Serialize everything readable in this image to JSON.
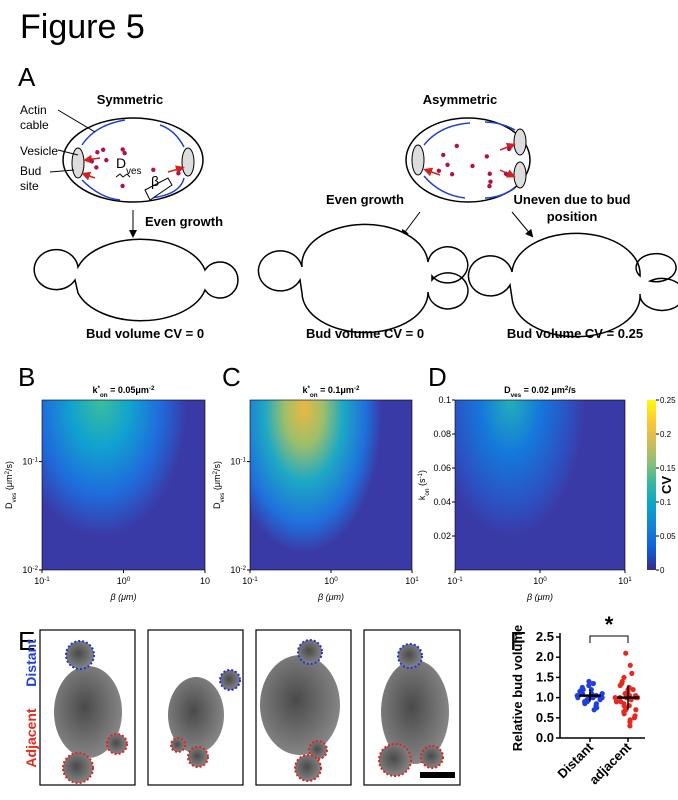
{
  "figure_title": "Figure 5",
  "panel_a": {
    "label": "A",
    "symmetric": "Symmetric",
    "asymmetric": "Asymmetric",
    "actin_cable": [
      "Actin",
      "cable"
    ],
    "vesicle": "Vesicle",
    "bud_site": [
      "Bud",
      "site"
    ],
    "dves": [
      {
        "t": "D"
      },
      {
        "t": "ves",
        "s": "sub"
      }
    ],
    "beta": "β",
    "even_growth_left": "Even growth",
    "even_growth_right": "Even growth",
    "uneven": [
      "Uneven due to bud",
      "position"
    ],
    "cv": [
      "Bud volume CV = 0",
      "Bud volume CV = 0",
      "Bud volume CV = 0.25"
    ]
  },
  "heatmaps": [
    {
      "label": "B",
      "title": [
        {
          "t": "k"
        },
        {
          "t": "*",
          "s": "sup"
        },
        {
          "t": "on",
          "s": "sub"
        },
        {
          "t": " = 0.05"
        },
        {
          "t": "μm"
        },
        {
          "t": "-2",
          "s": "sup"
        }
      ],
      "xlabel": "β (μm)",
      "ylabel": [
        {
          "t": "D"
        },
        {
          "t": "ves",
          "s": "sub"
        },
        {
          "t": " (μm"
        },
        {
          "t": "2",
          "s": "sup"
        },
        {
          "t": "/s)"
        }
      ],
      "xlim": [
        0.1,
        10
      ],
      "xticks": [
        {
          "value": 0.1,
          "label": "10",
          "sup": "-1"
        },
        {
          "value": 1,
          "label": "10",
          "sup": "0"
        },
        10
      ],
      "ylim": [
        0.01,
        0.37
      ],
      "log_y": true,
      "yticks": [
        {
          "value": 0.1,
          "label": "10",
          "sup": "-1"
        },
        {
          "value": 0.01,
          "label": "10",
          "sup": "-2"
        }
      ]
    },
    {
      "label": "C",
      "title": [
        {
          "t": "k"
        },
        {
          "t": "*",
          "s": "sup"
        },
        {
          "t": "on",
          "s": "sub"
        },
        {
          "t": " = 0.1"
        },
        {
          "t": "μm"
        },
        {
          "t": "-2",
          "s": "sup"
        }
      ],
      "xlabel": "β (μm)",
      "ylabel": [
        {
          "t": "D"
        },
        {
          "t": "ves",
          "s": "sub"
        },
        {
          "t": " (μm"
        },
        {
          "t": "2",
          "s": "sup"
        },
        {
          "t": "/s)"
        }
      ],
      "xlim": [
        0.1,
        10
      ],
      "xticks": [
        {
          "value": 0.1,
          "label": "10",
          "sup": "-1"
        },
        {
          "value": 1,
          "label": "10",
          "sup": "0"
        },
        {
          "value": 10,
          "label": "10",
          "sup": "1"
        }
      ],
      "ylim": [
        0.01,
        0.37
      ],
      "log_y": true,
      "yticks": [
        {
          "value": 0.1,
          "label": "10",
          "sup": "-1"
        },
        {
          "value": 0.01,
          "label": "10",
          "sup": "-2"
        }
      ]
    },
    {
      "label": "D",
      "title": [
        {
          "t": "D"
        },
        {
          "t": "ves",
          "s": "sub"
        },
        {
          "t": " = 0.02 "
        },
        {
          "t": "μm"
        },
        {
          "t": "2",
          "s": "sup"
        },
        {
          "t": "/s"
        }
      ],
      "xlabel": "β (μm)",
      "ylabel": [
        {
          "t": "k"
        },
        {
          "t": "on",
          "s": "sub"
        },
        {
          "t": " (s"
        },
        {
          "t": "-1",
          "s": "sup"
        },
        {
          "t": ")"
        }
      ],
      "xlim": [
        0.1,
        10
      ],
      "xticks": [
        {
          "value": 0.1,
          "label": "10",
          "sup": "-1"
        },
        {
          "value": 1,
          "label": "10",
          "sup": "0"
        },
        {
          "value": 10,
          "label": "10",
          "sup": "1"
        }
      ],
      "ylim": [
        0,
        0.1
      ],
      "log_y": false,
      "yticks": [
        0.02,
        0.04,
        0.06,
        0.08,
        0.1
      ]
    }
  ],
  "colorbar": {
    "label": "CV",
    "lim": [
      0,
      0.25
    ],
    "ticks": [
      0,
      0.05,
      0.1,
      0.15,
      0.2,
      0.25
    ],
    "colors": [
      "#352a87",
      "#0f5cdd",
      "#1481d6",
      "#06a4ca",
      "#2eb7a4",
      "#87bf77",
      "#d1bb59",
      "#fec832",
      "#f9fb0e"
    ]
  },
  "panel_e": {
    "label": "E",
    "distant": "Distant",
    "adjacent": "Adjacent"
  },
  "panel_f": {
    "label": "F",
    "ylabel": "Relative bud volume",
    "significance": "*",
    "categories": [
      "Distant",
      "adjacent"
    ],
    "ylim": [
      0,
      2.6
    ],
    "yticks": [
      {
        "value": 0,
        "label": "0.0"
      },
      0.5,
      {
        "value": 1,
        "label": "1.0"
      },
      1.5,
      {
        "value": 2,
        "label": "2.0"
      },
      2.5
    ],
    "groups": [
      {
        "color": "#1f3fe0",
        "mean": 1.05,
        "sd": 0.15,
        "values": [
          1.0,
          1.1,
          0.9,
          1.2,
          1.05,
          0.95,
          1.15,
          0.85,
          1.3,
          1.0,
          0.8,
          1.1,
          1.25,
          0.9,
          1.0,
          1.35,
          0.75,
          1.05,
          1.2,
          0.95,
          1.1,
          0.7,
          1.0,
          1.15,
          0.9,
          1.4,
          1.05,
          0.85,
          1.0,
          1.2
        ]
      },
      {
        "color": "#e8281e",
        "mean": 1.0,
        "sd": 0.3,
        "values": [
          1.0,
          0.9,
          1.1,
          0.8,
          1.2,
          0.7,
          1.3,
          0.6,
          1.0,
          0.95,
          1.05,
          0.5,
          1.4,
          0.85,
          1.15,
          0.4,
          1.6,
          0.9,
          1.0,
          0.75,
          1.25,
          0.3,
          1.8,
          2.1,
          0.65,
          1.1,
          0.95,
          1.0,
          0.55,
          1.35,
          0.8,
          1.2,
          0.45,
          1.0,
          0.9,
          1.5,
          0.7,
          1.05
        ]
      }
    ]
  }
}
